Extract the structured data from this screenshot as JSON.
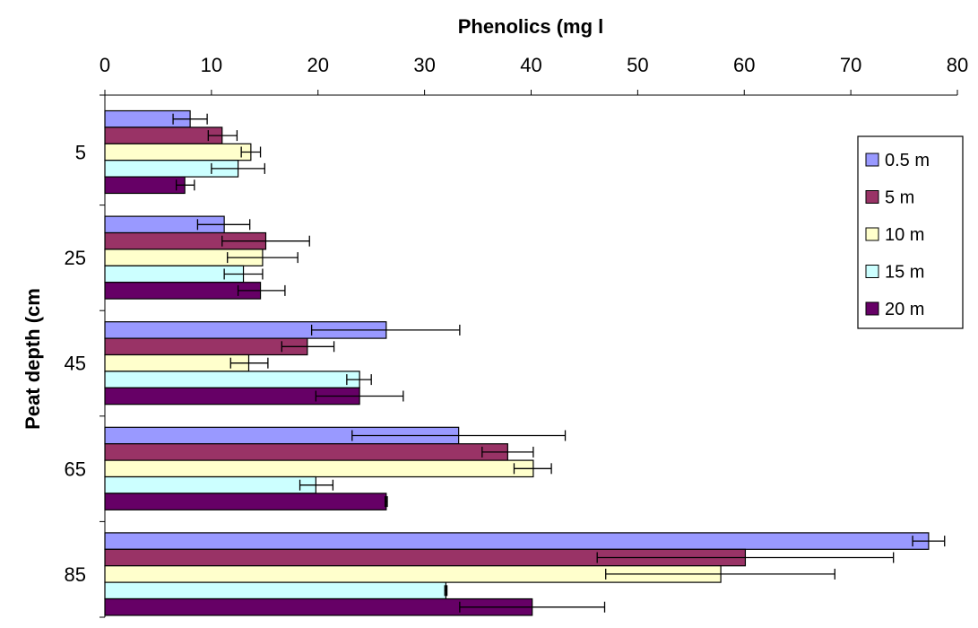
{
  "chart_data": {
    "type": "bar",
    "orientation": "horizontal",
    "title": "",
    "xlabel": "Phenolics (mg l",
    "ylabel": "Peat depth (cm",
    "xlim": [
      0,
      80
    ],
    "x_ticks": [
      "0",
      "10",
      "20",
      "30",
      "40",
      "50",
      "60",
      "70",
      "80"
    ],
    "x_axis_position": "top",
    "categories": [
      "5",
      "25",
      "45",
      "65",
      "85"
    ],
    "grid": false,
    "legend_position": "right",
    "series": [
      {
        "name": "0.5 m",
        "color": "#9999ff",
        "values": [
          8.0,
          11.2,
          26.4,
          33.2,
          77.3
        ],
        "error_low": [
          6.4,
          8.7,
          19.4,
          23.2,
          75.8
        ],
        "error_high": [
          9.6,
          13.6,
          33.3,
          43.2,
          78.8
        ]
      },
      {
        "name": "5 m",
        "color": "#993366",
        "values": [
          11.0,
          15.1,
          19.0,
          37.8,
          60.1
        ],
        "error_low": [
          9.7,
          11.0,
          16.6,
          35.4,
          46.2
        ],
        "error_high": [
          12.4,
          19.2,
          21.5,
          40.2,
          74.0
        ]
      },
      {
        "name": "10 m",
        "color": "#ffffcc",
        "values": [
          13.7,
          14.8,
          13.5,
          40.2,
          57.8
        ],
        "error_low": [
          12.8,
          11.5,
          11.8,
          38.4,
          47.0
        ],
        "error_high": [
          14.6,
          18.1,
          15.3,
          41.9,
          68.5
        ]
      },
      {
        "name": "15 m",
        "color": "#ccffff",
        "values": [
          12.5,
          13.0,
          23.9,
          19.8,
          32.0
        ],
        "error_low": [
          10.0,
          11.2,
          22.7,
          18.3,
          31.9
        ],
        "error_high": [
          15.0,
          14.8,
          25.0,
          21.4,
          32.1
        ]
      },
      {
        "name": "20 m",
        "color": "#660066",
        "values": [
          7.5,
          14.6,
          23.9,
          26.4,
          40.1
        ],
        "error_low": [
          6.7,
          12.5,
          19.8,
          26.3,
          33.3
        ],
        "error_high": [
          8.4,
          16.9,
          28.0,
          26.5,
          46.9
        ]
      }
    ]
  }
}
